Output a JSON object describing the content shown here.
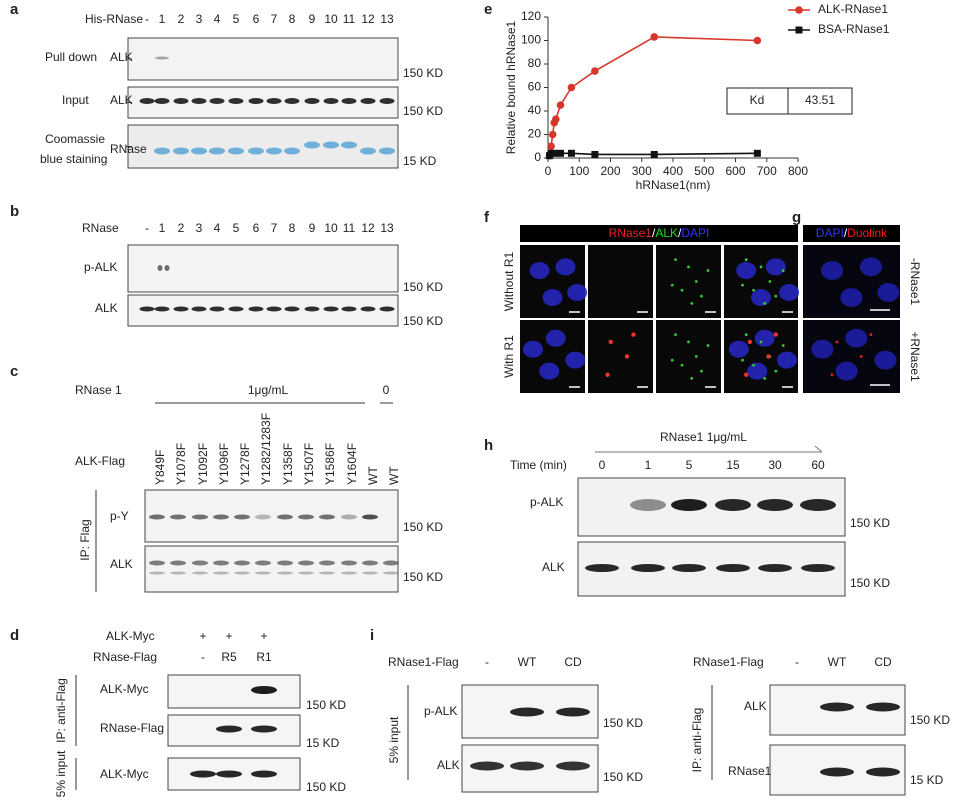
{
  "panel_a": {
    "label": "a",
    "header": "His-RNase",
    "lanes": [
      "-",
      "1",
      "2",
      "3",
      "4",
      "5",
      "6",
      "7",
      "8",
      "9",
      "10",
      "11",
      "12",
      "13"
    ],
    "rows": [
      {
        "name": [
          "Pull down"
        ],
        "protein": "ALK",
        "marker": "150 KD"
      },
      {
        "name": [
          "Input"
        ],
        "protein": "ALK",
        "marker": "150 KD"
      },
      {
        "name": [
          "Coomassie",
          "blue staining"
        ],
        "protein": "RNase",
        "marker": "15 KD"
      }
    ]
  },
  "panel_b": {
    "label": "b",
    "header": "RNase",
    "lanes": [
      "-",
      "1",
      "2",
      "3",
      "4",
      "5",
      "6",
      "7",
      "8",
      "9",
      "10",
      "11",
      "12",
      "13"
    ],
    "rows": [
      {
        "protein": "p-ALK",
        "marker": "150 KD"
      },
      {
        "protein": "ALK",
        "marker": "150 KD"
      }
    ]
  },
  "panel_c": {
    "label": "c",
    "treatment": "RNase 1",
    "dose": "1μg/mL",
    "control": "0",
    "row_header": "ALK-Flag",
    "lanes": [
      "Y849F",
      "Y1078F",
      "Y1092F",
      "Y1096F",
      "Y1278F",
      "Y1282/1283F",
      "Y1358F",
      "Y1507F",
      "Y1586F",
      "Y1604F",
      "WT",
      "WT"
    ],
    "group": "IP: Flag",
    "rows": [
      {
        "protein": "p-Y",
        "marker": "150 KD"
      },
      {
        "protein": "ALK",
        "marker": "150 KD"
      }
    ]
  },
  "panel_d": {
    "label": "d",
    "conditions": [
      {
        "name": "ALK-Myc",
        "values": [
          "+",
          "+",
          "+"
        ]
      },
      {
        "name": "RNase-Flag",
        "values": [
          "-",
          "R5",
          "R1"
        ]
      }
    ],
    "groups": [
      {
        "name": "IP: anti-Flag",
        "rows": [
          {
            "protein": "ALK-Myc",
            "marker": "150 KD"
          },
          {
            "protein": "RNase-Flag",
            "marker": "15 KD"
          }
        ]
      },
      {
        "name": "5% input",
        "rows": [
          {
            "protein": "ALK-Myc",
            "marker": "150 KD"
          }
        ]
      }
    ]
  },
  "chart_data": {
    "label": "e",
    "type": "line",
    "x_label": "hRNase1(nm)",
    "y_label": "Relative bound hRNase1",
    "xlim": [
      0,
      800
    ],
    "xticks": [
      0,
      100,
      200,
      300,
      400,
      500,
      600,
      700,
      800
    ],
    "ylim": [
      0,
      120
    ],
    "yticks": [
      0,
      20,
      40,
      60,
      80,
      100,
      120
    ],
    "grid": false,
    "legend": "top-right",
    "series": [
      {
        "name": "ALK-RNase1",
        "color": "#d7372b",
        "marker": "circle",
        "x": [
          5,
          10,
          15,
          20,
          25,
          40,
          75,
          150,
          340,
          670
        ],
        "values": [
          2,
          10,
          20,
          30,
          33,
          45,
          60,
          74,
          103,
          100
        ]
      },
      {
        "name": "BSA-RNase1",
        "color": "#111111",
        "marker": "square",
        "x": [
          5,
          10,
          20,
          40,
          75,
          150,
          340,
          670
        ],
        "values": [
          2,
          4,
          4,
          4,
          4,
          3,
          3,
          4
        ]
      }
    ],
    "table": {
      "header": "Kd",
      "value": 43.51
    }
  },
  "panel_f": {
    "label": "f",
    "header": [
      "RNase1",
      "/",
      "ALK",
      "/",
      "DAPI"
    ],
    "rows": [
      "Without R1",
      "With R1"
    ]
  },
  "panel_g": {
    "label": "g",
    "header": [
      "DAPI",
      "/",
      "Duolink"
    ],
    "rows": [
      "-RNase1",
      "+RNase1"
    ]
  },
  "panel_h": {
    "label": "h",
    "treatment": "RNase1 1μg/mL",
    "row_header": "Time (min)",
    "lanes": [
      "0",
      "1",
      "5",
      "15",
      "30",
      "60"
    ],
    "rows": [
      {
        "protein": "p-ALK",
        "marker": "150 KD"
      },
      {
        "protein": "ALK",
        "marker": "150 KD"
      }
    ]
  },
  "panel_i": {
    "label": "i",
    "blots": [
      {
        "condition": "RNase1-Flag",
        "lanes": [
          "-",
          "WT",
          "CD"
        ],
        "group": "5% input",
        "rows": [
          {
            "protein": "p-ALK",
            "marker": "150 KD"
          },
          {
            "protein": "ALK",
            "marker": "150 KD"
          }
        ]
      },
      {
        "condition": "RNase1-Flag",
        "lanes": [
          "-",
          "WT",
          "CD"
        ],
        "group": "IP: anti-Flag",
        "rows": [
          {
            "protein": "ALK",
            "marker": "150 KD"
          },
          {
            "protein": "RNase1",
            "marker": "15 KD"
          }
        ]
      }
    ]
  }
}
